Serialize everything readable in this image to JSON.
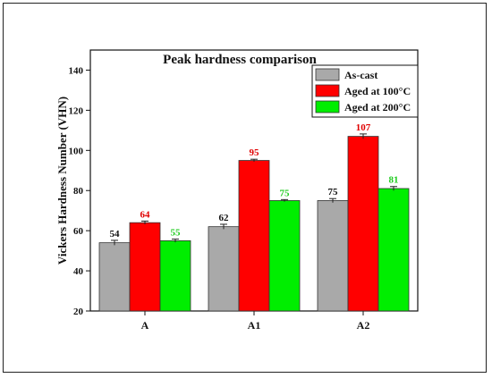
{
  "chart_data": {
    "type": "bar",
    "title": "Peak hardness comparison",
    "ylabel": "Vickers Hardness Number (VHN)",
    "xlabel": "",
    "ylim": [
      20,
      150
    ],
    "yticks": [
      20,
      40,
      60,
      80,
      100,
      120,
      140
    ],
    "categories": [
      "A",
      "A1",
      "A2"
    ],
    "series": [
      {
        "name": "As-cast",
        "color": "#a9a9a9",
        "label_color": "#111111",
        "values": [
          54,
          62,
          75
        ],
        "errors": [
          1.2,
          1.2,
          1.0
        ]
      },
      {
        "name": "Aged at 100°C",
        "color": "#ff0000",
        "label_color": "#e00000",
        "values": [
          64,
          95,
          107
        ],
        "errors": [
          0.8,
          0.6,
          1.2
        ]
      },
      {
        "name": "Aged at 200°C",
        "color": "#00ee00",
        "label_color": "#22cc22",
        "values": [
          55,
          75,
          81
        ],
        "errors": [
          0.8,
          0.5,
          1.0
        ]
      }
    ],
    "legend_position": "top-right",
    "grid": false
  }
}
